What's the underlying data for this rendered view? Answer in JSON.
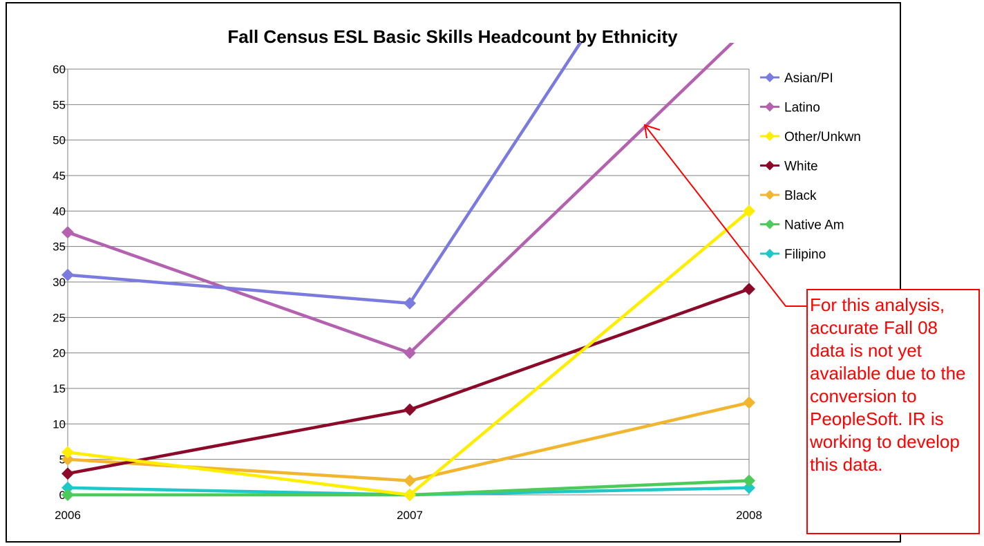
{
  "chart_data": {
    "type": "line",
    "title": "Fall Census ESL Basic Skills Headcount by Ethnicity",
    "xlabel": "",
    "ylabel": "",
    "x": [
      "2006",
      "2007",
      "2008"
    ],
    "ylim": [
      0,
      60
    ],
    "yticks": [
      0,
      5,
      10,
      15,
      20,
      25,
      30,
      35,
      40,
      45,
      50,
      55,
      60
    ],
    "grid": true,
    "legend_position": "right",
    "series": [
      {
        "name": "Asian/PI",
        "color": "#7b7bdf",
        "values": [
          31,
          27,
          100
        ]
      },
      {
        "name": "Latino",
        "color": "#b462b0",
        "values": [
          37,
          20,
          66
        ]
      },
      {
        "name": "Other/Unkwn",
        "color": "#ffee00",
        "values": [
          6,
          0,
          40
        ]
      },
      {
        "name": "White",
        "color": "#8b0a2a",
        "values": [
          3,
          12,
          29
        ]
      },
      {
        "name": "Black",
        "color": "#f2b52e",
        "values": [
          5,
          2,
          13
        ]
      },
      {
        "name": "Native Am",
        "color": "#4ccb5b",
        "values": [
          0,
          0,
          2
        ]
      },
      {
        "name": "Filipino",
        "color": "#1fc8c8",
        "values": [
          1,
          0,
          1
        ]
      }
    ]
  },
  "annotation": {
    "text": "For this analysis, accurate Fall 08 data is not yet available due to the conversion to PeopleSoft.  IR is working to develop this data.",
    "color": "#ff0000"
  }
}
